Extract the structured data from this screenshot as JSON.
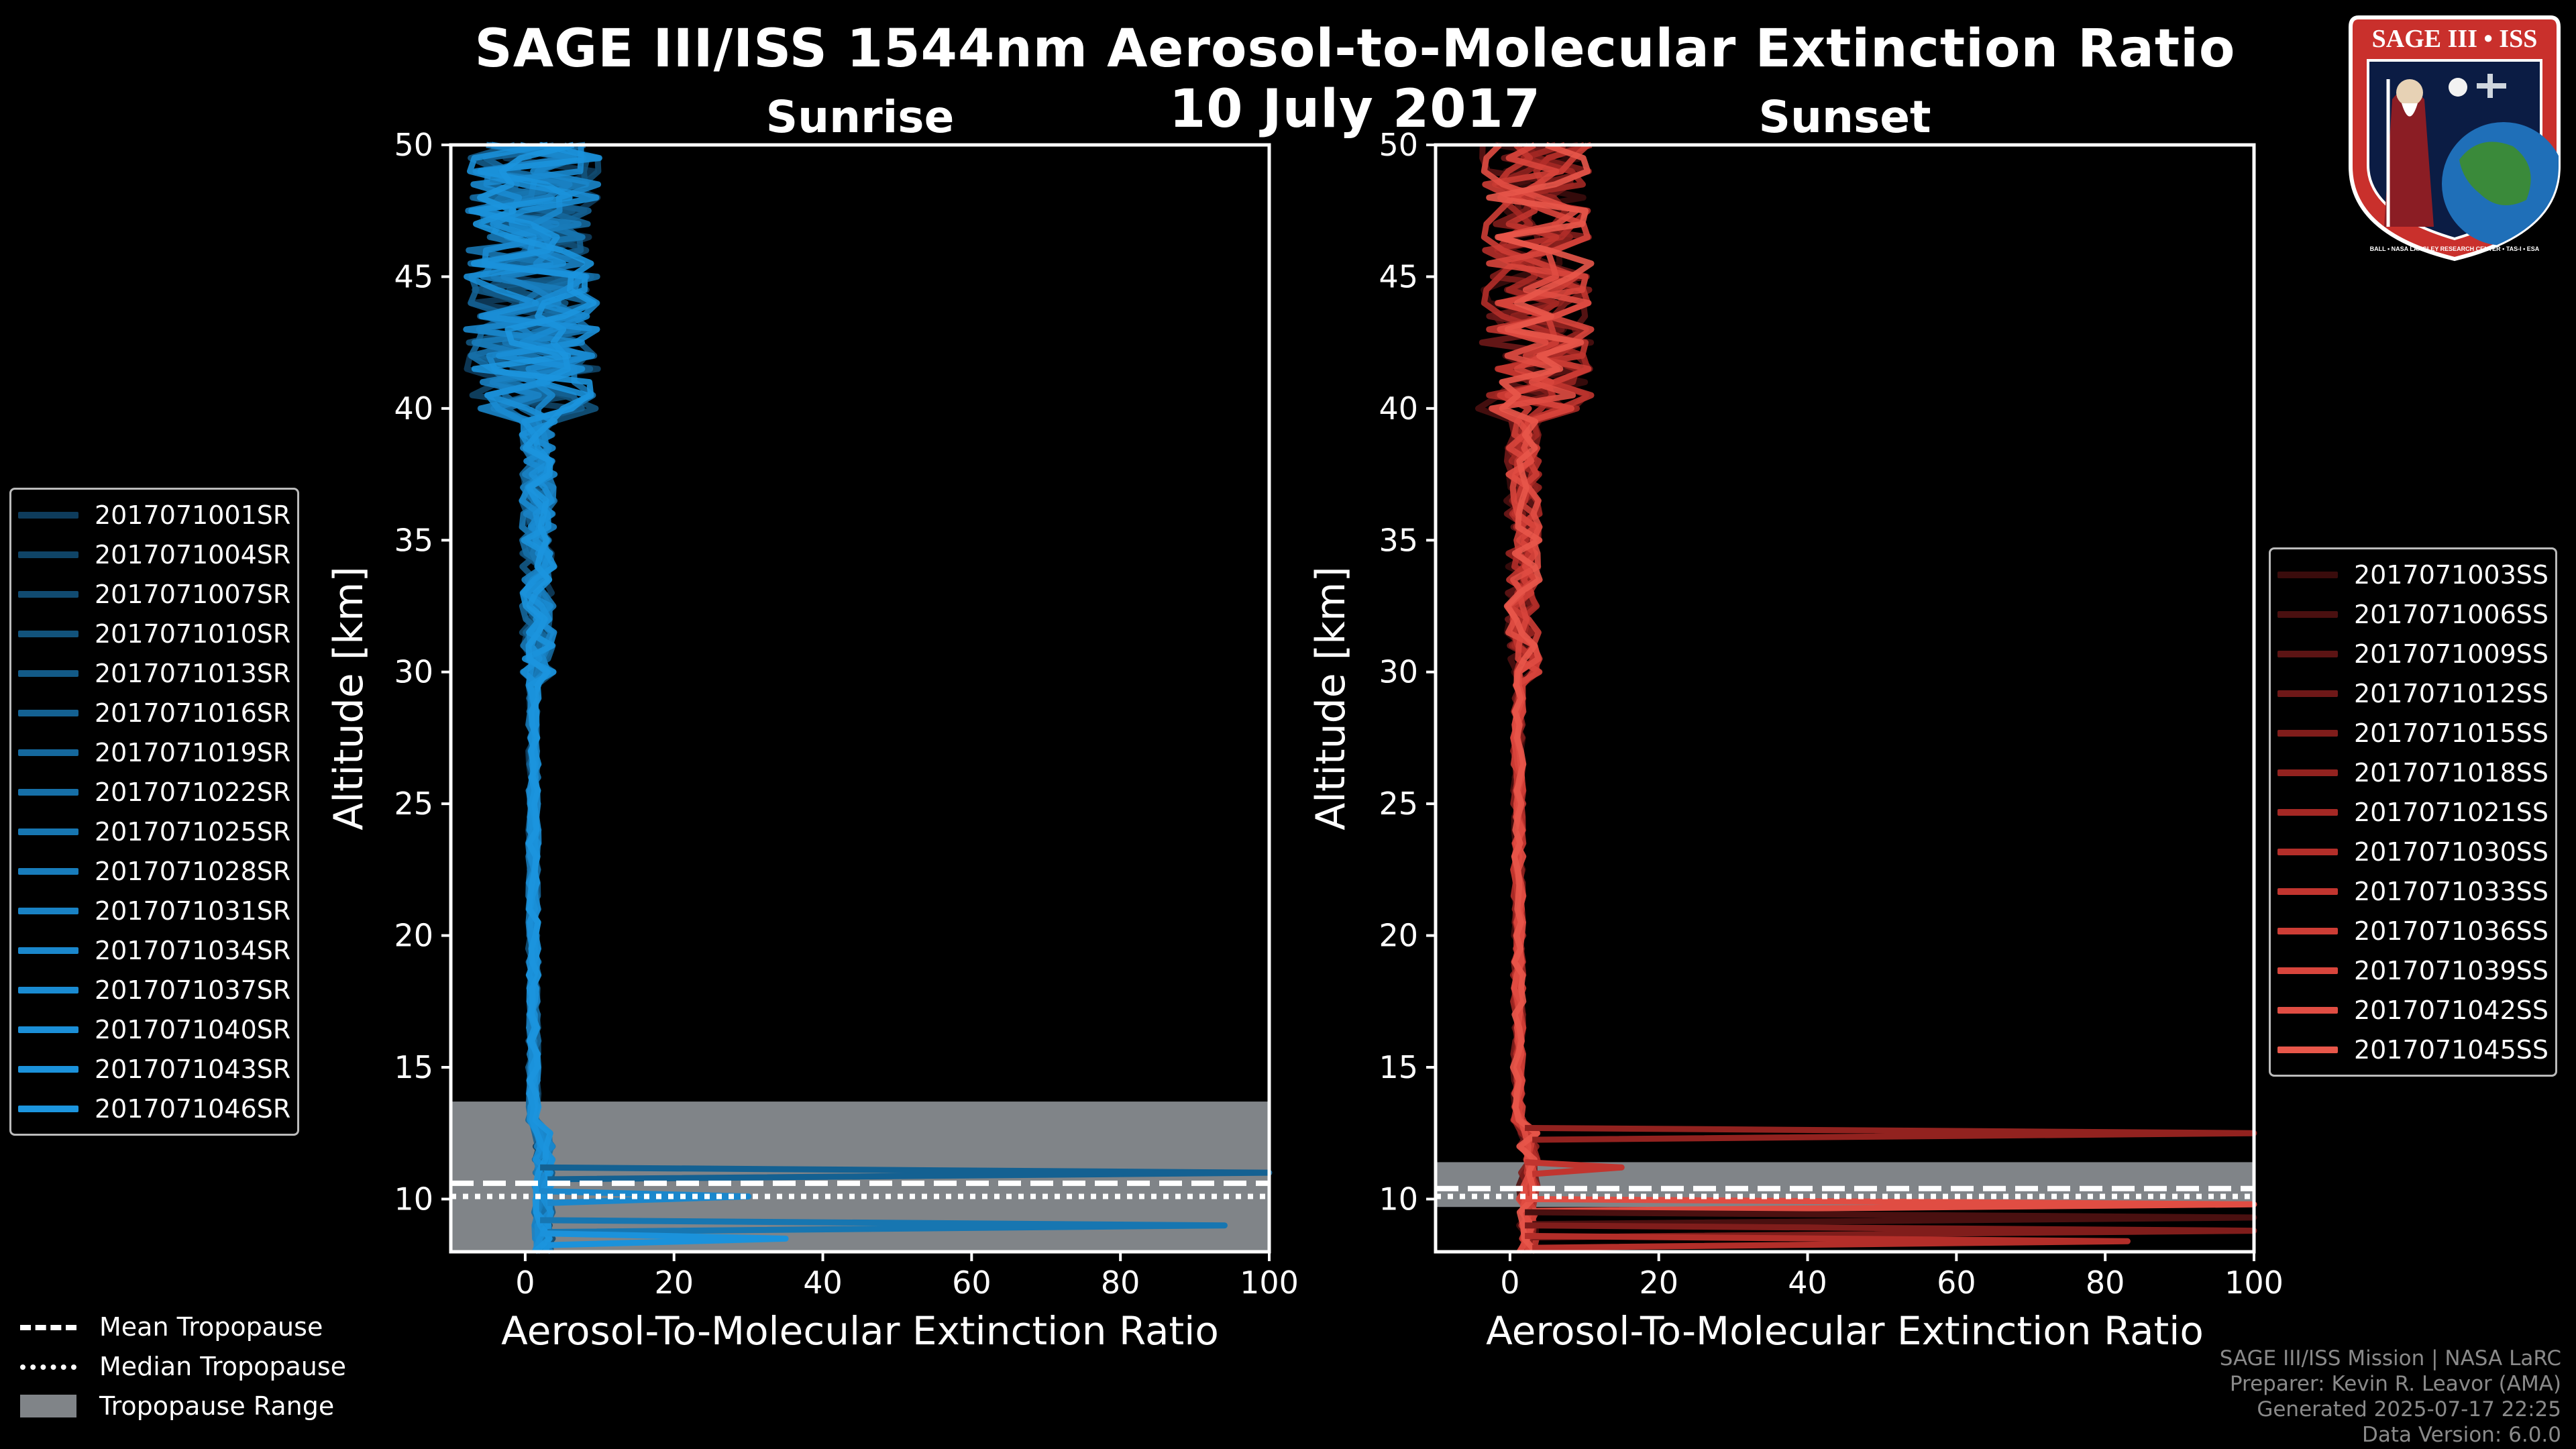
{
  "title_line1": "SAGE III/ISS 1544nm Aerosol-to-Molecular Extinction Ratio",
  "title_line2": "10 July 2017",
  "badge": {
    "title": "SAGE III • ISS",
    "ring_text": "BALL • NASA LANGLEY RESEARCH CENTER • TAS-I • ESA"
  },
  "credits": [
    "SAGE III/ISS Mission | NASA LaRC",
    "Preparer: Kevin R. Leavor (AMA)",
    "Generated 2025-07-17 22:25",
    "Data Version: 6.0.0"
  ],
  "colors": {
    "sunrise": "#1a8fd6",
    "sunset": "#e8574a",
    "tropo_range": "#808488"
  },
  "tropo_legend": [
    {
      "label": "Mean Tropopause",
      "style": "dashed"
    },
    {
      "label": "Median Tropopause",
      "style": "dotted"
    },
    {
      "label": "Tropopause Range",
      "style": "fill"
    }
  ],
  "chart_data": [
    {
      "type": "line",
      "title": "Sunrise",
      "xlabel": "Aerosol-To-Molecular Extinction Ratio",
      "ylabel": "Altitude [km]",
      "xlim": [
        -10,
        100
      ],
      "ylim": [
        8,
        50
      ],
      "xticks": [
        "0",
        "20",
        "40",
        "60",
        "80",
        "100"
      ],
      "yticks": [
        "10",
        "15",
        "20",
        "25",
        "30",
        "35",
        "40",
        "45",
        "50"
      ],
      "tropopause": {
        "mean": 10.6,
        "median": 10.1,
        "range": [
          8,
          13.7
        ]
      },
      "series": [
        {
          "name": "2017071001SR",
          "color": "#0e3c5c"
        },
        {
          "name": "2017071004SR",
          "color": "#0f4466"
        },
        {
          "name": "2017071007SR",
          "color": "#114b71"
        },
        {
          "name": "2017071010SR",
          "color": "#12537c"
        },
        {
          "name": "2017071013SR",
          "color": "#135a87"
        },
        {
          "name": "2017071016SR",
          "color": "#146192"
        },
        {
          "name": "2017071019SR",
          "color": "#15689d"
        },
        {
          "name": "2017071022SR",
          "color": "#166fa7"
        },
        {
          "name": "2017071025SR",
          "color": "#1776b1"
        },
        {
          "name": "2017071028SR",
          "color": "#187cbb"
        },
        {
          "name": "2017071031SR",
          "color": "#1982c4"
        },
        {
          "name": "2017071034SR",
          "color": "#1a87cc"
        },
        {
          "name": "2017071037SR",
          "color": "#1a8bd2"
        },
        {
          "name": "2017071040SR",
          "color": "#1b8fd7"
        },
        {
          "name": "2017071043SR",
          "color": "#1b92db"
        },
        {
          "name": "2017071046SR",
          "color": "#1c95de"
        }
      ],
      "spikes": [
        {
          "alt": 11.0,
          "x": 100
        },
        {
          "alt": 9.0,
          "x": 94
        },
        {
          "alt": 10.1,
          "x": 30
        },
        {
          "alt": 8.5,
          "x": 35
        }
      ]
    },
    {
      "type": "line",
      "title": "Sunset",
      "xlabel": "Aerosol-To-Molecular Extinction Ratio",
      "ylabel": "Altitude [km]",
      "xlim": [
        -10,
        100
      ],
      "ylim": [
        8,
        50
      ],
      "xticks": [
        "0",
        "20",
        "40",
        "60",
        "80",
        "100"
      ],
      "yticks": [
        "10",
        "15",
        "20",
        "25",
        "30",
        "35",
        "40",
        "45",
        "50"
      ],
      "tropopause": {
        "mean": 10.4,
        "median": 10.1,
        "range": [
          9.7,
          11.4
        ]
      },
      "series": [
        {
          "name": "2017071003SS",
          "color": "#3a0c0c"
        },
        {
          "name": "2017071006SS",
          "color": "#4a1010"
        },
        {
          "name": "2017071009SS",
          "color": "#5c1414"
        },
        {
          "name": "2017071012SS",
          "color": "#6e1818"
        },
        {
          "name": "2017071015SS",
          "color": "#801d1b"
        },
        {
          "name": "2017071018SS",
          "color": "#92221f"
        },
        {
          "name": "2017071021SS",
          "color": "#a42824"
        },
        {
          "name": "2017071030SS",
          "color": "#b32e29"
        },
        {
          "name": "2017071033SS",
          "color": "#c1352f"
        },
        {
          "name": "2017071036SS",
          "color": "#cd3d35"
        },
        {
          "name": "2017071039SS",
          "color": "#d8453c"
        },
        {
          "name": "2017071042SS",
          "color": "#e04d43"
        },
        {
          "name": "2017071045SS",
          "color": "#e8574a"
        }
      ],
      "spikes": [
        {
          "alt": 12.5,
          "x": 100
        },
        {
          "alt": 11.2,
          "x": 15
        },
        {
          "alt": 9.8,
          "x": 100
        },
        {
          "alt": 9.3,
          "x": 100
        },
        {
          "alt": 8.8,
          "x": 100
        },
        {
          "alt": 8.4,
          "x": 83
        }
      ]
    }
  ]
}
